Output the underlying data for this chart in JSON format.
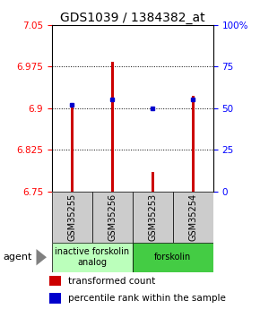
{
  "title": "GDS1039 / 1384382_at",
  "samples": [
    "GSM35255",
    "GSM35256",
    "GSM35253",
    "GSM35254"
  ],
  "bar_values": [
    6.902,
    6.983,
    6.785,
    6.922
  ],
  "percentile_values": [
    52,
    55,
    50,
    55
  ],
  "ymin": 6.75,
  "ymax": 7.05,
  "yticks": [
    6.75,
    6.825,
    6.9,
    6.975,
    7.05
  ],
  "ytick_labels": [
    "6.75",
    "6.825",
    "6.9",
    "6.975",
    "7.05"
  ],
  "right_yticks": [
    0,
    25,
    50,
    75,
    100
  ],
  "right_ytick_labels": [
    "0",
    "25",
    "50",
    "75",
    "100%"
  ],
  "bar_color": "#cc0000",
  "dot_color": "#0000cc",
  "bar_width": 0.08,
  "group_info": [
    {
      "label": "inactive forskolin\nanalog",
      "color": "#bbffbb",
      "xmin": 0.5,
      "xmax": 2.5
    },
    {
      "label": "forskolin",
      "color": "#44cc44",
      "xmin": 2.5,
      "xmax": 4.5
    }
  ],
  "agent_label": "agent",
  "legend_bar_label": "transformed count",
  "legend_dot_label": "percentile rank within the sample",
  "title_fontsize": 10,
  "tick_fontsize": 7.5,
  "label_fontsize": 7.5,
  "sample_label_fontsize": 7,
  "group_label_fontsize": 7
}
